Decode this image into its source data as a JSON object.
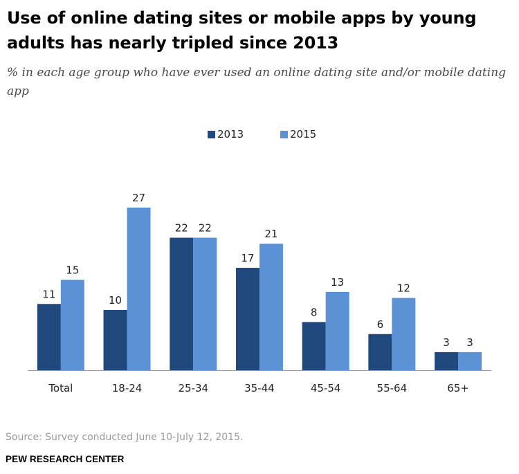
{
  "header": {
    "title": "Use of online dating sites or mobile apps by young adults has nearly tripled since 2013",
    "subtitle": "% in each age group who have ever used an online dating site and/or mobile dating app"
  },
  "legend": {
    "items": [
      {
        "label": "2013",
        "color": "#1f497d"
      },
      {
        "label": "2015",
        "color": "#5b92d6"
      }
    ]
  },
  "chart_data": {
    "type": "bar",
    "categories": [
      "Total",
      "18-24",
      "25-34",
      "35-44",
      "45-54",
      "55-64",
      "65+"
    ],
    "series": [
      {
        "name": "2013",
        "color": "#1f497d",
        "values": [
          11,
          10,
          22,
          17,
          8,
          6,
          3
        ]
      },
      {
        "name": "2015",
        "color": "#5b92d6",
        "values": [
          15,
          27,
          22,
          21,
          13,
          12,
          3
        ]
      }
    ],
    "ylim": [
      0,
      27
    ],
    "legend_position": "top-center",
    "grid": false
  },
  "footer": {
    "source": "Source: Survey conducted June 10-July 12, 2015.",
    "org": "PEW RESEARCH CENTER"
  }
}
